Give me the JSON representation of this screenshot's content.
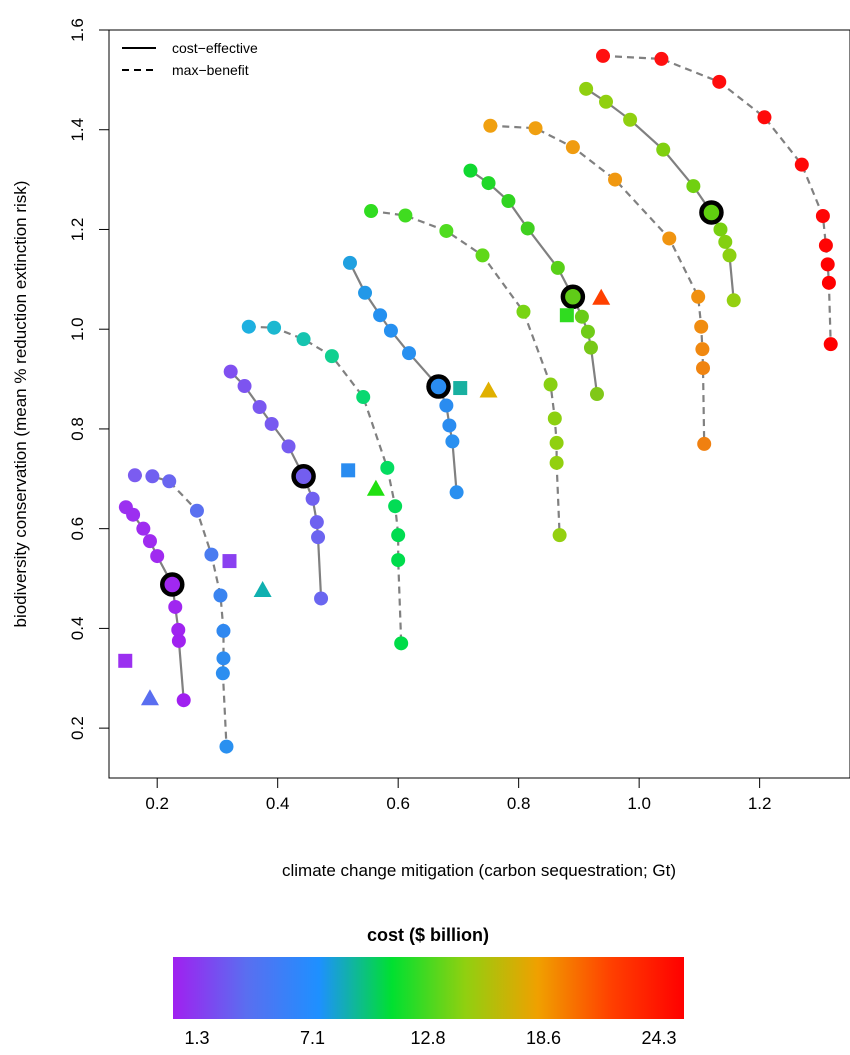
{
  "chart_data": {
    "type": "scatter",
    "title": "",
    "xlabel": "climate change mitigation (carbon sequestration; Gt)",
    "ylabel": "biodiversity conservation (mean % reduction extinction risk)",
    "xlim": [
      0.12,
      1.35
    ],
    "ylim": [
      0.1,
      1.6
    ],
    "x_ticks": [
      0.2,
      0.4,
      0.6,
      0.8,
      1.0,
      1.2
    ],
    "x_tick_labels": [
      "0.2",
      "0.4",
      "0.6",
      "0.8",
      "1.0",
      "1.2"
    ],
    "y_ticks": [
      0.2,
      0.4,
      0.6,
      0.8,
      1.0,
      1.2,
      1.4,
      1.6
    ],
    "y_tick_labels": [
      "0.2",
      "0.4",
      "0.6",
      "0.8",
      "1.0",
      "1.2",
      "1.4",
      "1.6"
    ],
    "grid": false,
    "legend_placement": "top-left",
    "legend": [
      {
        "label": "cost−effective",
        "line_style": "solid"
      },
      {
        "label": "max−benefit",
        "line_style": "dashed"
      }
    ],
    "colorbar": {
      "title": "cost ($ billion)",
      "min": 1.3,
      "max": 24.3,
      "tick_labels": [
        "1.3",
        "7.1",
        "12.8",
        "18.6",
        "24.3"
      ],
      "colors": [
        "#a020f0",
        "#5a6ef0",
        "#1e90ff",
        "#00e030",
        "#90d010",
        "#f0a000",
        "#ff4000",
        "#ff0000"
      ]
    },
    "line_color": "#808080",
    "series": [
      {
        "style": "dashed",
        "points": [
          [
            0.163,
            0.707
          ],
          [
            0.192,
            0.705
          ],
          [
            0.22,
            0.695
          ],
          [
            0.266,
            0.636
          ],
          [
            0.29,
            0.548
          ],
          [
            0.305,
            0.466
          ],
          [
            0.31,
            0.395
          ],
          [
            0.31,
            0.34
          ],
          [
            0.309,
            0.31
          ],
          [
            0.315,
            0.163
          ]
        ],
        "colors": [
          "#7b5cf0",
          "#7160f0",
          "#6a66f0",
          "#5a70f0",
          "#4a7cf0",
          "#3a84f0",
          "#3088f0",
          "#2e8cf0",
          "#2c8ef0",
          "#2a90f0"
        ]
      },
      {
        "style": "solid",
        "points": [
          [
            0.148,
            0.643
          ],
          [
            0.16,
            0.628
          ],
          [
            0.177,
            0.6
          ],
          [
            0.188,
            0.575
          ],
          [
            0.2,
            0.545
          ],
          [
            0.225,
            0.488
          ],
          [
            0.23,
            0.443
          ],
          [
            0.235,
            0.397
          ],
          [
            0.236,
            0.375
          ],
          [
            0.244,
            0.256
          ]
        ],
        "colors": [
          "#9b30f0",
          "#9c2ef0",
          "#9e2cf0",
          "#9f2bf0",
          "#a02af0",
          "#a028f0",
          "#a026f0",
          "#a024f0",
          "#a022f0",
          "#a020f0"
        ]
      },
      {
        "style": "dashed",
        "points": [
          [
            0.352,
            1.005
          ],
          [
            0.394,
            1.003
          ],
          [
            0.443,
            0.98
          ],
          [
            0.49,
            0.946
          ],
          [
            0.542,
            0.864
          ],
          [
            0.582,
            0.722
          ],
          [
            0.595,
            0.645
          ],
          [
            0.6,
            0.587
          ],
          [
            0.6,
            0.537
          ],
          [
            0.605,
            0.37
          ]
        ],
        "colors": [
          "#1eb0e0",
          "#1cb8d0",
          "#16c4b0",
          "#10d090",
          "#08d870",
          "#04dc60",
          "#02dc55",
          "#00dc50",
          "#00dc4c",
          "#00dc48"
        ]
      },
      {
        "style": "solid",
        "points": [
          [
            0.322,
            0.915
          ],
          [
            0.345,
            0.886
          ],
          [
            0.37,
            0.844
          ],
          [
            0.39,
            0.81
          ],
          [
            0.418,
            0.765
          ],
          [
            0.443,
            0.705
          ],
          [
            0.458,
            0.66
          ],
          [
            0.465,
            0.613
          ],
          [
            0.467,
            0.583
          ],
          [
            0.472,
            0.46
          ]
        ],
        "colors": [
          "#8050f0",
          "#7d54f0",
          "#7a58f0",
          "#785af0",
          "#765cf0",
          "#735ef0",
          "#7060f0",
          "#6e62f0",
          "#6c64f0",
          "#6a66f0"
        ]
      },
      {
        "style": "dashed",
        "points": [
          [
            0.555,
            1.237
          ],
          [
            0.612,
            1.228
          ],
          [
            0.68,
            1.197
          ],
          [
            0.74,
            1.148
          ],
          [
            0.808,
            1.035
          ],
          [
            0.853,
            0.889
          ],
          [
            0.86,
            0.821
          ],
          [
            0.863,
            0.772
          ],
          [
            0.863,
            0.732
          ],
          [
            0.868,
            0.587
          ]
        ],
        "colors": [
          "#30dc20",
          "#40dc20",
          "#50dc20",
          "#60d818",
          "#78d414",
          "#88d012",
          "#8cd010",
          "#90d010",
          "#92d010",
          "#94d010"
        ]
      },
      {
        "style": "solid",
        "points": [
          [
            0.52,
            1.133
          ],
          [
            0.545,
            1.073
          ],
          [
            0.57,
            1.028
          ],
          [
            0.588,
            0.997
          ],
          [
            0.618,
            0.952
          ],
          [
            0.667,
            0.885
          ],
          [
            0.68,
            0.847
          ],
          [
            0.685,
            0.807
          ],
          [
            0.69,
            0.775
          ],
          [
            0.697,
            0.673
          ]
        ],
        "colors": [
          "#20a0e0",
          "#2298e8",
          "#2490f0",
          "#2690f0",
          "#2890f0",
          "#2a8cf0",
          "#2a8cf0",
          "#2a8cf0",
          "#2a90f0",
          "#2a90f0"
        ]
      },
      {
        "style": "dashed",
        "points": [
          [
            0.753,
            1.408
          ],
          [
            0.828,
            1.403
          ],
          [
            0.89,
            1.365
          ],
          [
            0.96,
            1.3
          ],
          [
            1.05,
            1.182
          ],
          [
            1.098,
            1.065
          ],
          [
            1.103,
            1.005
          ],
          [
            1.105,
            0.96
          ],
          [
            1.106,
            0.922
          ],
          [
            1.108,
            0.77
          ]
        ],
        "colors": [
          "#f0a010",
          "#f0a010",
          "#f09c10",
          "#f09810",
          "#f09410",
          "#f09010",
          "#f08c10",
          "#f08810",
          "#f08410",
          "#f08010"
        ]
      },
      {
        "style": "solid",
        "points": [
          [
            0.72,
            1.318
          ],
          [
            0.75,
            1.293
          ],
          [
            0.783,
            1.257
          ],
          [
            0.815,
            1.202
          ],
          [
            0.865,
            1.123
          ],
          [
            0.89,
            1.065
          ],
          [
            0.905,
            1.025
          ],
          [
            0.915,
            0.995
          ],
          [
            0.92,
            0.963
          ],
          [
            0.93,
            0.87
          ]
        ],
        "colors": [
          "#10d830",
          "#20d828",
          "#30d420",
          "#40d020",
          "#58d018",
          "#60cc18",
          "#68cc18",
          "#70cc18",
          "#78c818",
          "#80c818"
        ]
      },
      {
        "style": "dashed",
        "points": [
          [
            0.94,
            1.548
          ],
          [
            1.037,
            1.542
          ],
          [
            1.133,
            1.496
          ],
          [
            1.208,
            1.425
          ],
          [
            1.27,
            1.33
          ],
          [
            1.305,
            1.227
          ],
          [
            1.31,
            1.168
          ],
          [
            1.313,
            1.13
          ],
          [
            1.315,
            1.093
          ],
          [
            1.318,
            0.97
          ]
        ],
        "colors": [
          "#ff1010",
          "#ff1010",
          "#ff0c0c",
          "#ff0a0a",
          "#ff0808",
          "#ff0606",
          "#ff0404",
          "#ff0202",
          "#ff0000",
          "#ff0000"
        ]
      },
      {
        "style": "solid",
        "points": [
          [
            0.912,
            1.482
          ],
          [
            0.945,
            1.456
          ],
          [
            0.985,
            1.42
          ],
          [
            1.04,
            1.36
          ],
          [
            1.09,
            1.287
          ],
          [
            1.12,
            1.234
          ],
          [
            1.135,
            1.2
          ],
          [
            1.143,
            1.175
          ],
          [
            1.15,
            1.148
          ],
          [
            1.157,
            1.058
          ]
        ],
        "colors": [
          "#90d010",
          "#90d010",
          "#90d010",
          "#80d010",
          "#70d010",
          "#60d010",
          "#78d010",
          "#84d010",
          "#8cd010",
          "#94d010"
        ]
      }
    ],
    "highlighted": [
      {
        "x": 0.225,
        "y": 0.488,
        "color": "#a028f0"
      },
      {
        "x": 0.443,
        "y": 0.705,
        "color": "#735ef0"
      },
      {
        "x": 0.667,
        "y": 0.885,
        "color": "#2a8cf0"
      },
      {
        "x": 0.89,
        "y": 1.065,
        "color": "#60cc18"
      },
      {
        "x": 1.12,
        "y": 1.234,
        "color": "#60d010"
      }
    ],
    "squares": [
      {
        "x": 0.147,
        "y": 0.335,
        "color": "#9b30f0"
      },
      {
        "x": 0.32,
        "y": 0.535,
        "color": "#8a40f0"
      },
      {
        "x": 0.517,
        "y": 0.717,
        "color": "#2a8cf0"
      },
      {
        "x": 0.703,
        "y": 0.882,
        "color": "#18b0a0"
      },
      {
        "x": 0.88,
        "y": 1.028,
        "color": "#30dc20"
      }
    ],
    "triangles": [
      {
        "x": 0.188,
        "y": 0.26,
        "color": "#5a6ef0"
      },
      {
        "x": 0.375,
        "y": 0.477,
        "color": "#10b0b0"
      },
      {
        "x": 0.563,
        "y": 0.68,
        "color": "#20e010"
      },
      {
        "x": 0.75,
        "y": 0.877,
        "color": "#e0b000"
      },
      {
        "x": 0.937,
        "y": 1.063,
        "color": "#ff4000"
      }
    ]
  }
}
